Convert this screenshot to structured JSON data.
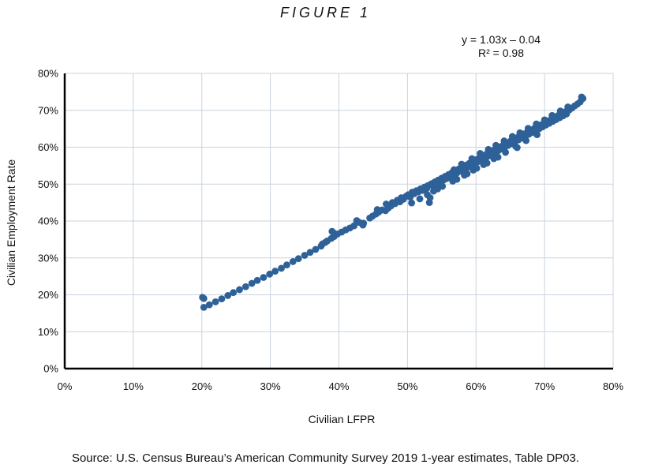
{
  "figure_title": "FIGURE 1",
  "regression": {
    "equation": "y = 1.03x – 0.04",
    "r_squared": "R² = 0.98"
  },
  "source": "Source: U.S. Census Bureau’s American Community Survey 2019 1-year estimates, Table DP03.",
  "chart_data": {
    "type": "scatter",
    "xlabel": "Civilian LFPR",
    "ylabel": "Civilian Employment Rate",
    "xlim": [
      0,
      80
    ],
    "ylim": [
      0,
      80
    ],
    "xticks": [
      "0%",
      "10%",
      "20%",
      "30%",
      "40%",
      "50%",
      "60%",
      "70%",
      "80%"
    ],
    "yticks": [
      "0%",
      "10%",
      "20%",
      "30%",
      "40%",
      "50%",
      "60%",
      "70%",
      "80%"
    ],
    "grid": true,
    "legend": "none",
    "series": [
      {
        "color": "#2e6197",
        "points": [
          [
            20.1,
            19.3
          ],
          [
            20.3,
            19.0
          ],
          [
            20.3,
            16.6
          ],
          [
            21.1,
            17.3
          ],
          [
            22.0,
            18.1
          ],
          [
            22.9,
            18.9
          ],
          [
            23.8,
            19.8
          ],
          [
            24.6,
            20.6
          ],
          [
            25.5,
            21.4
          ],
          [
            26.4,
            22.2
          ],
          [
            27.3,
            23.1
          ],
          [
            28.1,
            23.9
          ],
          [
            29.0,
            24.7
          ],
          [
            29.9,
            25.6
          ],
          [
            30.7,
            26.4
          ],
          [
            31.6,
            27.2
          ],
          [
            32.4,
            28.1
          ],
          [
            33.3,
            29.0
          ],
          [
            34.1,
            29.8
          ],
          [
            35.0,
            30.7
          ],
          [
            35.8,
            31.5
          ],
          [
            36.6,
            32.3
          ],
          [
            37.4,
            33.2
          ],
          [
            37.6,
            33.8
          ],
          [
            38.0,
            34.2
          ],
          [
            38.3,
            34.6
          ],
          [
            38.9,
            35.3
          ],
          [
            39.3,
            35.8
          ],
          [
            39.0,
            37.2
          ],
          [
            39.2,
            36.8
          ],
          [
            39.8,
            36.5
          ],
          [
            40.4,
            37.0
          ],
          [
            41.0,
            37.6
          ],
          [
            41.6,
            38.1
          ],
          [
            42.2,
            38.7
          ],
          [
            42.6,
            40.1
          ],
          [
            43.0,
            39.6
          ],
          [
            43.6,
            39.4
          ],
          [
            43.5,
            38.9
          ],
          [
            44.5,
            40.8
          ],
          [
            44.9,
            41.3
          ],
          [
            45.4,
            41.9
          ],
          [
            45.8,
            42.4
          ],
          [
            45.6,
            43.1
          ],
          [
            46.3,
            43.0
          ],
          [
            46.8,
            42.8
          ],
          [
            47.2,
            43.5
          ],
          [
            47.6,
            44.1
          ],
          [
            46.9,
            44.6
          ],
          [
            47.8,
            45.0
          ],
          [
            48.2,
            44.7
          ],
          [
            48.5,
            45.6
          ],
          [
            48.9,
            45.2
          ],
          [
            49.1,
            46.3
          ],
          [
            49.4,
            45.9
          ],
          [
            49.8,
            46.7
          ],
          [
            50.1,
            47.1
          ],
          [
            50.4,
            46.5
          ],
          [
            50.7,
            47.8
          ],
          [
            51.0,
            47.4
          ],
          [
            51.3,
            48.2
          ],
          [
            51.6,
            47.9
          ],
          [
            51.9,
            48.7
          ],
          [
            52.2,
            48.3
          ],
          [
            52.5,
            49.2
          ],
          [
            52.8,
            48.8
          ],
          [
            53.0,
            49.6
          ],
          [
            53.2,
            45.0
          ],
          [
            53.3,
            46.3
          ],
          [
            53.5,
            50.1
          ],
          [
            53.7,
            49.5
          ],
          [
            54.0,
            50.6
          ],
          [
            54.2,
            50.0
          ],
          [
            54.5,
            51.1
          ],
          [
            54.7,
            50.5
          ],
          [
            55.0,
            51.6
          ],
          [
            55.2,
            51.0
          ],
          [
            55.5,
            52.1
          ],
          [
            55.7,
            51.5
          ],
          [
            56.0,
            52.6
          ],
          [
            56.2,
            52.0
          ],
          [
            56.5,
            53.1
          ],
          [
            56.7,
            52.5
          ],
          [
            57.0,
            53.6
          ],
          [
            57.2,
            53.0
          ],
          [
            57.5,
            54.1
          ],
          [
            57.7,
            53.5
          ],
          [
            58.0,
            54.6
          ],
          [
            58.2,
            54.0
          ],
          [
            58.5,
            55.1
          ],
          [
            58.7,
            54.5
          ],
          [
            59.0,
            55.6
          ],
          [
            59.2,
            55.0
          ],
          [
            59.5,
            56.1
          ],
          [
            59.7,
            55.5
          ],
          [
            60.0,
            56.6
          ],
          [
            60.2,
            56.0
          ],
          [
            60.5,
            57.1
          ],
          [
            60.7,
            56.5
          ],
          [
            61.0,
            57.6
          ],
          [
            61.2,
            57.0
          ],
          [
            61.5,
            58.1
          ],
          [
            61.7,
            57.5
          ],
          [
            62.0,
            58.6
          ],
          [
            62.2,
            58.0
          ],
          [
            62.5,
            59.1
          ],
          [
            62.7,
            58.5
          ],
          [
            63.0,
            59.6
          ],
          [
            63.2,
            59.0
          ],
          [
            63.5,
            60.1
          ],
          [
            63.7,
            59.5
          ],
          [
            64.0,
            60.6
          ],
          [
            64.2,
            60.0
          ],
          [
            64.5,
            61.1
          ],
          [
            64.7,
            60.5
          ],
          [
            65.0,
            61.6
          ],
          [
            65.2,
            61.0
          ],
          [
            65.5,
            62.1
          ],
          [
            65.7,
            61.5
          ],
          [
            66.0,
            62.6
          ],
          [
            66.2,
            62.0
          ],
          [
            66.5,
            63.1
          ],
          [
            66.7,
            62.5
          ],
          [
            67.0,
            63.6
          ],
          [
            67.2,
            63.0
          ],
          [
            67.5,
            64.1
          ],
          [
            67.7,
            63.5
          ],
          [
            68.0,
            64.6
          ],
          [
            68.2,
            64.0
          ],
          [
            68.5,
            65.1
          ],
          [
            68.7,
            64.5
          ],
          [
            69.0,
            65.6
          ],
          [
            69.2,
            65.0
          ],
          [
            69.5,
            66.1
          ],
          [
            69.7,
            65.5
          ],
          [
            70.0,
            66.6
          ],
          [
            70.2,
            66.0
          ],
          [
            70.5,
            67.1
          ],
          [
            70.7,
            66.5
          ],
          [
            71.0,
            67.6
          ],
          [
            71.2,
            67.0
          ],
          [
            71.5,
            68.1
          ],
          [
            71.7,
            67.5
          ],
          [
            72.0,
            68.6
          ],
          [
            72.2,
            68.0
          ],
          [
            72.5,
            69.1
          ],
          [
            72.7,
            68.5
          ],
          [
            73.0,
            69.6
          ],
          [
            73.2,
            69.0
          ],
          [
            73.6,
            70.1
          ],
          [
            74.0,
            70.6
          ],
          [
            74.4,
            71.2
          ],
          [
            74.8,
            71.7
          ],
          [
            75.2,
            72.3
          ],
          [
            75.4,
            73.6
          ],
          [
            75.6,
            73.2
          ],
          [
            55.6,
            51.8
          ],
          [
            56.8,
            53.9
          ],
          [
            57.9,
            55.4
          ],
          [
            59.4,
            56.9
          ],
          [
            60.6,
            58.3
          ],
          [
            61.8,
            59.4
          ],
          [
            62.9,
            60.5
          ],
          [
            64.1,
            61.7
          ],
          [
            65.3,
            62.9
          ],
          [
            66.4,
            63.9
          ],
          [
            67.6,
            65.1
          ],
          [
            68.8,
            66.3
          ],
          [
            70.0,
            67.4
          ],
          [
            71.1,
            68.6
          ],
          [
            72.3,
            69.8
          ],
          [
            73.4,
            70.9
          ],
          [
            53.8,
            48.1
          ],
          [
            55.1,
            49.4
          ],
          [
            56.6,
            50.8
          ],
          [
            58.3,
            52.4
          ],
          [
            59.6,
            53.8
          ],
          [
            61.1,
            55.3
          ],
          [
            62.6,
            56.9
          ],
          [
            64.3,
            58.6
          ],
          [
            65.8,
            60.2
          ],
          [
            67.3,
            61.8
          ],
          [
            68.9,
            63.4
          ],
          [
            50.6,
            44.9
          ],
          [
            51.8,
            46.0
          ],
          [
            52.9,
            47.1
          ],
          [
            54.4,
            48.7
          ],
          [
            57.2,
            51.3
          ],
          [
            58.7,
            52.8
          ],
          [
            60.1,
            54.3
          ],
          [
            61.6,
            55.7
          ],
          [
            63.2,
            57.3
          ],
          [
            66.0,
            59.9
          ]
        ]
      }
    ]
  }
}
